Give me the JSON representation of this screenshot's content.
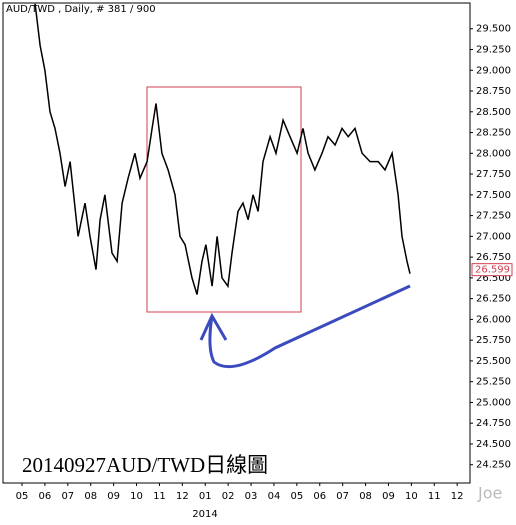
{
  "chart_data": {
    "type": "line",
    "title": "AUD/TWD , Daily, # 381 / 900",
    "annotation": "20140927AUD/TWD日線圖",
    "watermark": "Joe",
    "year_label": "2014",
    "last_price": 26.599,
    "color": "#000000",
    "x": [
      0.57,
      0.79,
      1.0,
      1.22,
      1.44,
      1.66,
      1.88,
      2.1,
      2.45,
      2.75,
      2.97,
      3.23,
      3.41,
      3.62,
      3.93,
      4.15,
      4.37,
      4.63,
      4.93,
      5.15,
      5.46,
      5.68,
      5.85,
      6.11,
      6.38,
      6.68,
      6.9,
      7.12,
      7.42,
      7.64,
      7.86,
      8.03,
      8.3,
      8.52,
      8.73,
      8.99,
      9.17,
      9.43,
      9.65,
      9.87,
      10.09,
      10.31,
      10.52,
      10.83,
      11.09,
      11.4,
      11.7,
      12.01,
      12.27,
      12.49,
      12.79,
      13.1,
      13.36,
      13.67,
      13.97,
      14.24,
      14.54,
      14.85,
      15.2,
      15.55,
      15.85,
      16.16,
      16.42,
      16.59,
      16.81,
      16.94
    ],
    "values": [
      29.8,
      29.3,
      29.0,
      28.5,
      28.3,
      28.0,
      27.6,
      27.9,
      27.0,
      27.4,
      27.0,
      26.6,
      27.2,
      27.5,
      26.8,
      26.7,
      27.4,
      27.7,
      28.0,
      27.7,
      27.9,
      28.3,
      28.6,
      28.0,
      27.8,
      27.5,
      27.0,
      26.9,
      26.5,
      26.3,
      26.7,
      26.9,
      26.4,
      27.0,
      26.5,
      26.4,
      26.8,
      27.3,
      27.4,
      27.2,
      27.5,
      27.3,
      27.9,
      28.2,
      28.0,
      28.4,
      28.2,
      28.0,
      28.3,
      28.0,
      27.8,
      28.0,
      28.2,
      28.1,
      28.3,
      28.2,
      28.3,
      28.0,
      27.9,
      27.9,
      27.8,
      28.0,
      27.5,
      27.0,
      26.7,
      26.55
    ],
    "xlim": [
      -0.83,
      19.56
    ],
    "xticks": [
      {
        "value": 0,
        "label": "05"
      },
      {
        "value": 1,
        "label": "06"
      },
      {
        "value": 2,
        "label": "07"
      },
      {
        "value": 3,
        "label": "08"
      },
      {
        "value": 4,
        "label": "09"
      },
      {
        "value": 5,
        "label": "10"
      },
      {
        "value": 6,
        "label": "11"
      },
      {
        "value": 7,
        "label": "12"
      },
      {
        "value": 8,
        "label": "01"
      },
      {
        "value": 9,
        "label": "02"
      },
      {
        "value": 10,
        "label": "03"
      },
      {
        "value": 11,
        "label": "04"
      },
      {
        "value": 12,
        "label": "05"
      },
      {
        "value": 13,
        "label": "06"
      },
      {
        "value": 14,
        "label": "07"
      },
      {
        "value": 15,
        "label": "08"
      },
      {
        "value": 16,
        "label": "09"
      },
      {
        "value": 17,
        "label": "10"
      },
      {
        "value": 18,
        "label": "11"
      },
      {
        "value": 19,
        "label": "12"
      }
    ],
    "ylim": [
      24.03,
      29.81
    ],
    "yticks": [
      {
        "value": 24.25,
        "label": "24.250"
      },
      {
        "value": 24.5,
        "label": "24.500"
      },
      {
        "value": 24.75,
        "label": "24.750"
      },
      {
        "value": 25,
        "label": "25.000"
      },
      {
        "value": 25.25,
        "label": "25.250"
      },
      {
        "value": 25.5,
        "label": "25.500"
      },
      {
        "value": 25.75,
        "label": "25.750"
      },
      {
        "value": 26,
        "label": "26.000"
      },
      {
        "value": 26.25,
        "label": "26.250"
      },
      {
        "value": 26.5,
        "label": "26.500"
      },
      {
        "value": 26.75,
        "label": "26.750"
      },
      {
        "value": 27,
        "label": "27.000"
      },
      {
        "value": 27.25,
        "label": "27.250"
      },
      {
        "value": 27.5,
        "label": "27.500"
      },
      {
        "value": 27.75,
        "label": "27.750"
      },
      {
        "value": 28,
        "label": "28.000"
      },
      {
        "value": 28.25,
        "label": "28.250"
      },
      {
        "value": 28.5,
        "label": "28.500"
      },
      {
        "value": 28.75,
        "label": "28.750"
      },
      {
        "value": 29,
        "label": "29.000"
      },
      {
        "value": 29.25,
        "label": "29.250"
      },
      {
        "value": 29.5,
        "label": "29.500"
      }
    ]
  }
}
